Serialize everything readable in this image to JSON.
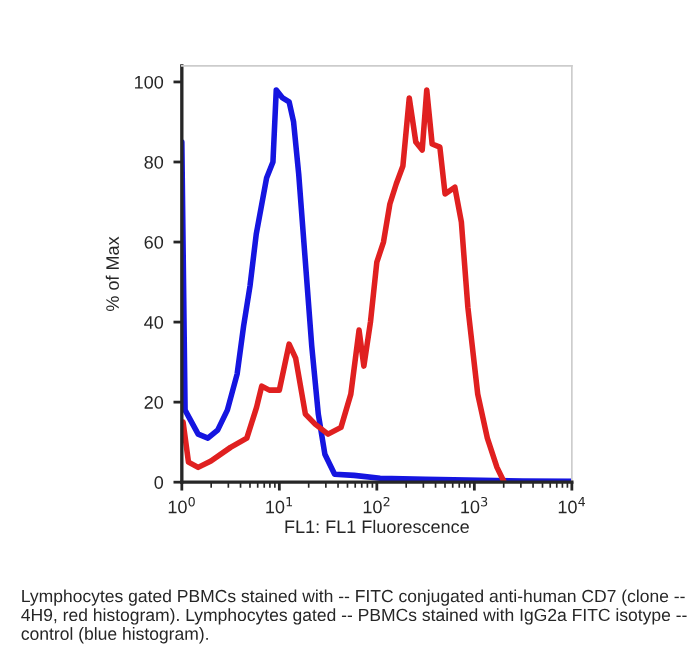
{
  "chart_data": {
    "type": "line",
    "xlabel": "FL1: FL1 Fluorescence",
    "ylabel": "% of Max",
    "log": "x",
    "xlim": [
      1,
      10000
    ],
    "xticks": [
      {
        "value": 1,
        "label": "10$^{0}$"
      },
      {
        "value": 10,
        "label": "10$^{1}$"
      },
      {
        "value": 100,
        "label": "10$^{2}$"
      },
      {
        "value": 1000,
        "label": "10$^{3}$"
      },
      {
        "value": 10000,
        "label": "10$^{4}$"
      }
    ],
    "ylim": [
      0,
      104
    ],
    "yticks": [
      0,
      20,
      40,
      60,
      80,
      100
    ],
    "grid": false,
    "legend": false,
    "marker": "none",
    "line_style": "solid",
    "annotations": [
      "Lymphocytes gated PBMCs stained with -- FITC conjugated anti-human CD7 (clone -- 4H9, red histogram). Lymphocytes gated -- PBMCs stained with IgG2a FITC isotype -- control (blue histogram)."
    ],
    "series": [
      {
        "color": "#1515e0",
        "x": [
          1,
          1.08,
          1.47,
          1.85,
          2.33,
          2.93,
          3.69,
          4.3,
          5.0,
          5.8,
          7.4,
          8.6,
          9.3,
          10.8,
          12.6,
          14.0,
          15.8,
          18.5,
          21.5,
          25.1,
          29.3,
          36.9,
          58.5,
          108,
          316,
          3162,
          10000
        ],
        "values": [
          85,
          18,
          12,
          11,
          13,
          18,
          27,
          39,
          49,
          62,
          76,
          80,
          98,
          96,
          95,
          90,
          77,
          55,
          34,
          17,
          7,
          2,
          1.7,
          1,
          0.7,
          0.3,
          0.2
        ]
      },
      {
        "color": "#e02020",
        "x": [
          1,
          1.03,
          1.17,
          1.47,
          1.99,
          3.16,
          4.64,
          5.84,
          6.6,
          7.9,
          10,
          12.6,
          14.7,
          18.5,
          23.3,
          31.6,
          42.9,
          54.1,
          65.7,
          73.6,
          86,
          100,
          117,
          136,
          158,
          185,
          215,
          251,
          292,
          325,
          369,
          443,
          501,
          631,
          736,
          858,
          1083,
          1359,
          1706,
          1995
        ],
        "values": [
          15,
          15,
          5,
          3.7,
          5.3,
          8.7,
          11,
          18.7,
          24,
          23,
          23,
          34.5,
          31,
          17,
          14.5,
          12,
          13.7,
          22,
          38,
          29,
          40,
          55,
          60,
          69.5,
          74.5,
          79,
          96,
          85,
          83,
          98,
          84.5,
          83.7,
          72,
          73.7,
          65,
          43.7,
          22,
          11,
          3.7,
          0.3
        ]
      }
    ]
  }
}
